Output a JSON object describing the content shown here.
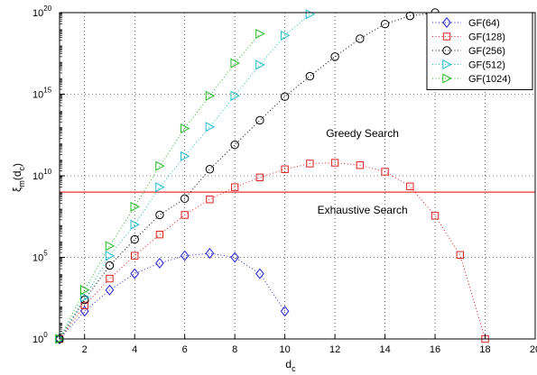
{
  "chart_data": {
    "type": "scatter",
    "xlabel_main": "d",
    "xlabel_sub": "c",
    "ylabel_main": "ξ",
    "ylabel_sub": "m",
    "ylabel_tail": "(d",
    "ylabel_tail_sub": "c",
    "ylabel_close": ")",
    "xlim": [
      1,
      20
    ],
    "ylim_log10": [
      0,
      20
    ],
    "yscale": "log",
    "grid": true,
    "legend_position": "top-right",
    "x_ticks": [
      2,
      4,
      6,
      8,
      10,
      12,
      14,
      16,
      18,
      20
    ],
    "y_ticks": [
      {
        "exp": 0,
        "base": "10",
        "power": "0"
      },
      {
        "exp": 5,
        "base": "10",
        "power": "5"
      },
      {
        "exp": 10,
        "base": "10",
        "power": "10"
      },
      {
        "exp": 15,
        "base": "10",
        "power": "15"
      },
      {
        "exp": 20,
        "base": "10",
        "power": "20"
      }
    ],
    "threshold_log10": 9.0,
    "threshold_color": "#ee3333",
    "annotations": [
      {
        "text": "Greedy Search",
        "x": 13.1,
        "y_log10": 12.6
      },
      {
        "text": "Exhaustive Search",
        "x": 13.1,
        "y_log10": 7.9
      }
    ],
    "series": [
      {
        "name": "GF(64)",
        "color": "#2222cc",
        "marker": "diamond",
        "x": [
          1,
          2,
          3,
          4,
          5,
          6,
          7,
          8,
          9,
          10
        ],
        "y_log10": [
          0,
          1.7,
          3.0,
          4.0,
          4.65,
          5.1,
          5.25,
          5.0,
          4.0,
          1.7
        ]
      },
      {
        "name": "GF(128)",
        "color": "#dd2222",
        "marker": "square",
        "x": [
          1,
          2,
          3,
          4,
          5,
          6,
          7,
          8,
          9,
          10,
          11,
          12,
          13,
          14,
          15,
          16,
          17,
          18
        ],
        "y_log10": [
          0,
          2.05,
          3.7,
          5.1,
          6.4,
          7.6,
          8.55,
          9.3,
          9.9,
          10.4,
          10.75,
          10.8,
          10.65,
          10.25,
          9.35,
          7.55,
          5.15,
          0
        ]
      },
      {
        "name": "GF(256)",
        "color": "#000000",
        "marker": "circle",
        "x": [
          1,
          2,
          3,
          4,
          5,
          6,
          7,
          8,
          9,
          10,
          11,
          12,
          13,
          14,
          15,
          16
        ],
        "y_log10": [
          0,
          2.4,
          4.5,
          6.1,
          7.6,
          8.6,
          10.4,
          11.9,
          13.4,
          14.85,
          16.1,
          17.3,
          18.4,
          19.3,
          19.8,
          20.0
        ]
      },
      {
        "name": "GF(512)",
        "color": "#22bbcc",
        "marker": "triangle-right",
        "x": [
          1,
          2,
          3,
          4,
          5,
          6,
          7,
          8,
          9,
          10,
          11
        ],
        "y_log10": [
          0,
          2.55,
          5.1,
          7.0,
          9.3,
          11.2,
          13.0,
          14.9,
          16.8,
          18.6,
          19.9
        ]
      },
      {
        "name": "GF(1024)",
        "color": "#22bb22",
        "marker": "triangle-right",
        "x": [
          1,
          2,
          3,
          4,
          5,
          6,
          7,
          8,
          9
        ],
        "y_log10": [
          0,
          3.0,
          5.7,
          8.1,
          10.6,
          12.9,
          14.9,
          16.9,
          18.7
        ]
      }
    ]
  }
}
